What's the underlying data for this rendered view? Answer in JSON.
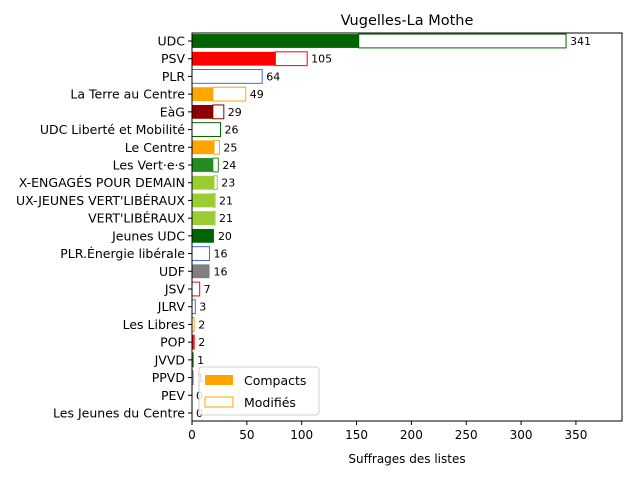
{
  "chart_data": {
    "type": "bar",
    "orientation": "horizontal",
    "stacked": true,
    "title": "Vugelles-La Mothe",
    "xlabel": "Suffrages des listes",
    "ylabel": "",
    "xlim": [
      0,
      392
    ],
    "xticks": [
      0,
      50,
      100,
      150,
      200,
      250,
      300,
      350
    ],
    "grid": false,
    "legend_position": "lower-left",
    "categories": [
      "UDC",
      "PSV",
      "PLR",
      "La Terre au Centre",
      "EàG",
      "UDC Liberté et Mobilité",
      "Le Centre",
      "Les Vert·e·s",
      "X-ENGAGÉS POUR DEMAIN",
      "UX-JEUNES VERT'LIBÉRAUX",
      "VERT'LIBÉRAUX",
      "Jeunes UDC",
      "PLR.Énergie libérale",
      "UDF",
      "JSV",
      "JLRV",
      "Les Libres",
      "POP",
      "JVVD",
      "PPVD",
      "PEV",
      "Les Jeunes du Centre"
    ],
    "colors": [
      "#006400",
      "#ff0000",
      "#4169e1",
      "#ffa500",
      "#8b0000",
      "#006400",
      "#ffa500",
      "#228b22",
      "#9acd32",
      "#9acd32",
      "#9acd32",
      "#006400",
      "#4169e1",
      "#808080",
      "#ff0000",
      "#4169e1",
      "#ffa500",
      "#ff0000",
      "#006400",
      "#808080",
      "#ffa500",
      "#ffa500"
    ],
    "series": [
      {
        "name": "Compacts",
        "values": [
          152,
          76,
          0,
          19,
          19,
          0,
          20,
          19,
          20,
          20,
          20,
          20,
          0,
          16,
          0,
          0,
          0,
          1,
          0,
          0,
          0,
          0
        ]
      },
      {
        "name": "Modifiés",
        "values": [
          189,
          29,
          64,
          30,
          10,
          26,
          5,
          5,
          3,
          1,
          1,
          0,
          16,
          0,
          7,
          3,
          2,
          1,
          1,
          1,
          0,
          0
        ]
      }
    ],
    "totals": [
      "341",
      "105",
      "64",
      "49",
      "29",
      "26",
      "25",
      "24",
      "23",
      "21",
      "21",
      "20",
      "16",
      "16",
      "7",
      "3",
      "2",
      "2",
      "1",
      "1",
      "0",
      "0"
    ],
    "legend_colors": {
      "Compacts": "#ffa500",
      "Modifiés": "#ffa500"
    }
  }
}
